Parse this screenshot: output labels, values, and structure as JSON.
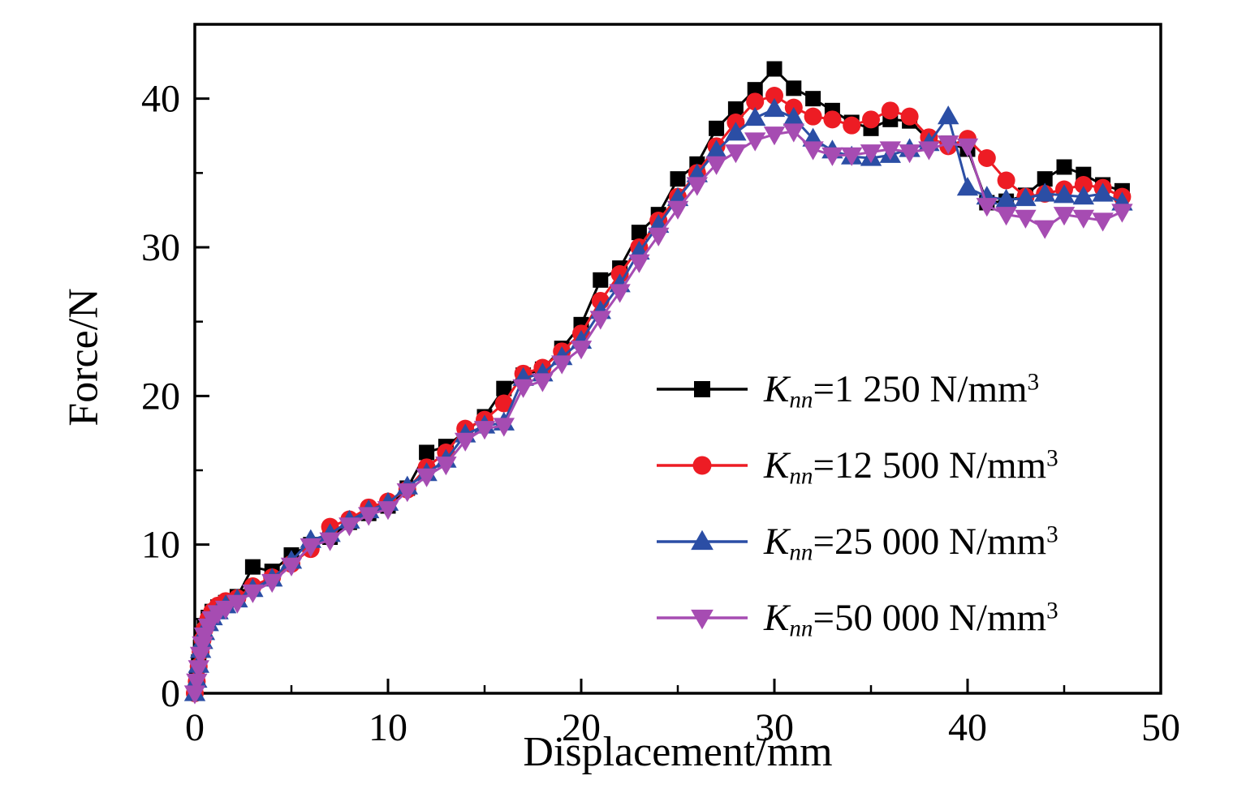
{
  "chart_data": {
    "type": "line",
    "title": "",
    "xlabel": "Displacement/mm",
    "ylabel": "Force/N",
    "xlim": [
      0,
      50
    ],
    "ylim": [
      0,
      45
    ],
    "x_ticks": [
      0,
      10,
      20,
      30,
      40,
      50
    ],
    "x_minor_ticks": [
      5,
      15,
      25,
      35,
      45
    ],
    "y_ticks": [
      0,
      10,
      20,
      30,
      40
    ],
    "y_minor_ticks": [
      5,
      15,
      25,
      35
    ],
    "grid": false,
    "legend_position": "inside-right",
    "x": [
      0,
      0.1,
      0.2,
      0.3,
      0.4,
      0.5,
      0.7,
      0.9,
      1.2,
      1.6,
      2.2,
      3,
      4,
      5,
      6,
      7,
      8,
      9,
      10,
      11,
      12,
      13,
      14,
      15,
      16,
      17,
      18,
      19,
      20,
      21,
      22,
      23,
      24,
      25,
      26,
      27,
      28,
      29,
      30,
      31,
      32,
      33,
      34,
      35,
      36,
      37,
      38,
      39,
      40,
      41,
      42,
      43,
      44,
      45,
      46,
      47,
      48
    ],
    "series": [
      {
        "id": "knn-1250",
        "name": "Knn=1 250 N/mm^3",
        "label": {
          "symbol": "K",
          "subscript": "nn",
          "value": "=1 250 N/mm",
          "exponent": "3"
        },
        "color": "#000000",
        "marker": "square",
        "y": [
          0,
          1.0,
          2.1,
          3.1,
          3.9,
          4.5,
          5.1,
          5.5,
          5.8,
          6.1,
          6.5,
          8.5,
          8.2,
          9.3,
          10.0,
          10.5,
          11.5,
          12.1,
          12.6,
          13.8,
          16.2,
          16.6,
          17.6,
          18.6,
          20.5,
          21.4,
          21.8,
          23.2,
          24.8,
          27.8,
          28.6,
          31.0,
          32.2,
          34.6,
          35.6,
          38.0,
          39.3,
          40.6,
          42.0,
          40.7,
          40.0,
          39.2,
          38.4,
          38.0,
          38.6,
          38.5,
          37.2,
          37.0,
          36.6,
          33.0,
          33.1,
          33.5,
          34.6,
          35.4,
          34.9,
          34.2,
          33.8
        ]
      },
      {
        "id": "knn-12500",
        "name": "Knn=12 500 N/mm^3",
        "label": {
          "symbol": "K",
          "subscript": "nn",
          "value": "=12 500 N/mm",
          "exponent": "3"
        },
        "color": "#ed1c24",
        "marker": "circle",
        "y": [
          0,
          0.8,
          1.8,
          2.8,
          3.6,
          4.3,
          5.0,
          5.5,
          5.9,
          6.2,
          6.4,
          7.2,
          7.8,
          8.7,
          9.7,
          11.2,
          11.7,
          12.5,
          12.9,
          13.7,
          15.2,
          16.2,
          17.8,
          18.4,
          19.5,
          21.5,
          21.9,
          23.0,
          24.2,
          26.4,
          28.2,
          30.0,
          31.8,
          33.4,
          35.0,
          36.8,
          38.4,
          39.8,
          40.2,
          39.4,
          38.8,
          38.6,
          38.2,
          38.6,
          39.2,
          38.8,
          37.4,
          36.8,
          37.3,
          36.0,
          34.5,
          33.4,
          33.6,
          33.9,
          34.2,
          34.0,
          33.4
        ]
      },
      {
        "id": "knn-25000",
        "name": "Knn=25 000 N/mm^3",
        "label": {
          "symbol": "K",
          "subscript": "nn",
          "value": "=25 000 N/mm",
          "exponent": "3"
        },
        "color": "#2b4ea5",
        "marker": "triangle-up",
        "y": [
          0,
          0.9,
          1.9,
          2.9,
          3.5,
          4.1,
          4.7,
          5.1,
          5.5,
          5.9,
          6.3,
          7.0,
          7.7,
          8.9,
          10.3,
          10.7,
          11.6,
          12.3,
          12.8,
          13.9,
          14.8,
          15.7,
          17.4,
          18.0,
          18.2,
          21.2,
          21.5,
          22.6,
          23.7,
          25.7,
          27.5,
          29.7,
          31.5,
          33.3,
          34.9,
          36.5,
          37.7,
          38.7,
          39.3,
          38.7,
          37.3,
          36.5,
          36.1,
          36.0,
          36.2,
          36.6,
          37.0,
          38.8,
          34.0,
          33.4,
          33.2,
          33.3,
          33.6,
          33.5,
          33.4,
          33.6,
          33.0
        ]
      },
      {
        "id": "knn-50000",
        "name": "Knn=50 000 N/mm^3",
        "label": {
          "symbol": "K",
          "subscript": "nn",
          "value": "=50 000 N/mm",
          "exponent": "3"
        },
        "color": "#a64cb2",
        "marker": "triangle-down",
        "y": [
          0,
          0.8,
          1.7,
          2.6,
          3.3,
          3.9,
          4.5,
          5.0,
          5.4,
          5.7,
          6.1,
          6.8,
          7.5,
          8.6,
          9.9,
          10.3,
          11.3,
          12.0,
          12.4,
          13.6,
          14.6,
          15.4,
          17.0,
          17.8,
          18.0,
          20.6,
          21.0,
          22.2,
          23.2,
          25.2,
          27.0,
          29.0,
          30.8,
          32.6,
          34.2,
          35.6,
          36.4,
          37.2,
          37.6,
          37.8,
          36.6,
          36.2,
          36.2,
          36.4,
          36.6,
          36.4,
          36.6,
          37.0,
          36.8,
          32.8,
          32.2,
          32.0,
          31.3,
          32.2,
          32.0,
          31.8,
          32.4
        ]
      }
    ]
  }
}
